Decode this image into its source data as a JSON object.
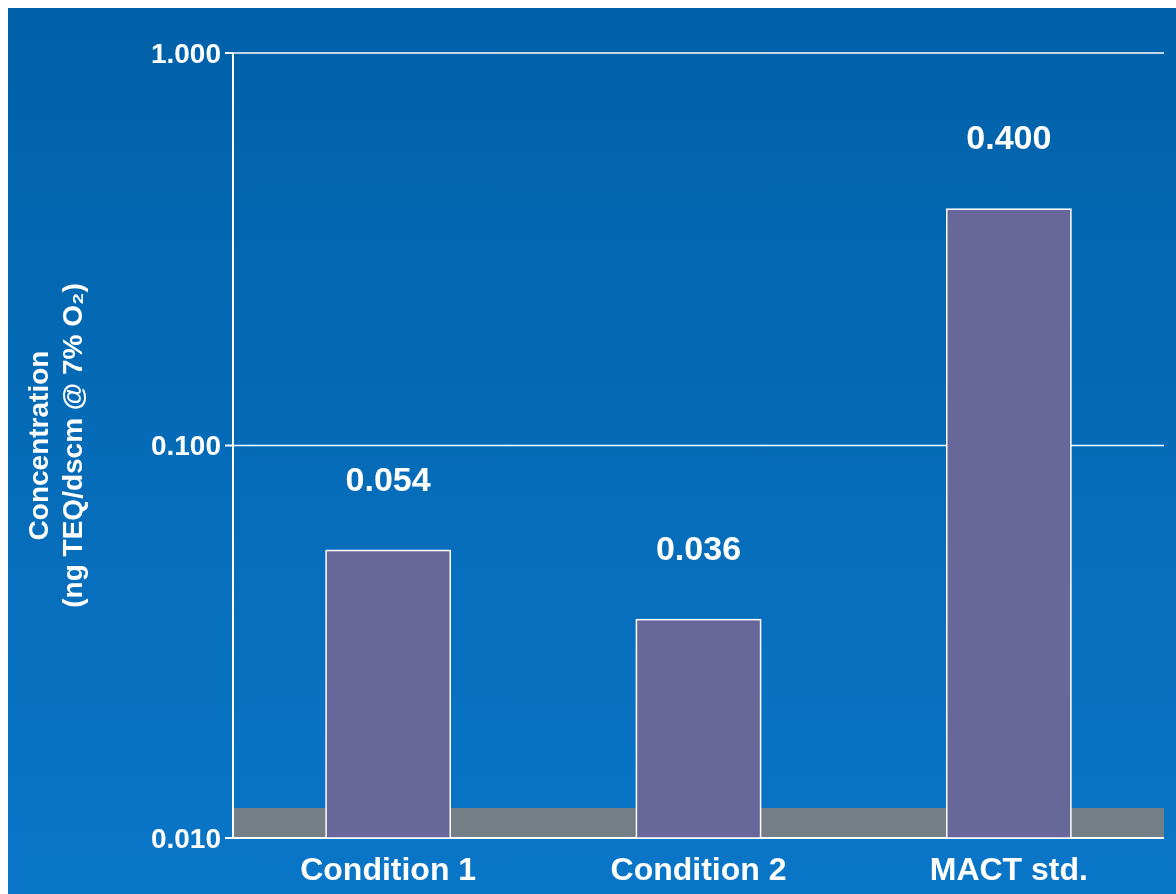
{
  "chart_data": {
    "type": "bar",
    "ylabel": "Concentration\n(ng TEQ/dscm @ 7% O₂)",
    "categories": [
      "Condition 1",
      "Condition 2",
      "MACT std."
    ],
    "values": [
      0.054,
      0.036,
      0.4
    ],
    "color": "#67679a",
    "log": true,
    "ylim": [
      0.01,
      1
    ],
    "yticks": [
      {
        "value": 0.01,
        "label": "0.010"
      },
      {
        "value": 0.1,
        "label": "0.100"
      },
      {
        "value": 1,
        "label": "1.000"
      }
    ],
    "grid": "y",
    "value_labels": [
      "0.054",
      "0.036",
      "0.400"
    ]
  }
}
